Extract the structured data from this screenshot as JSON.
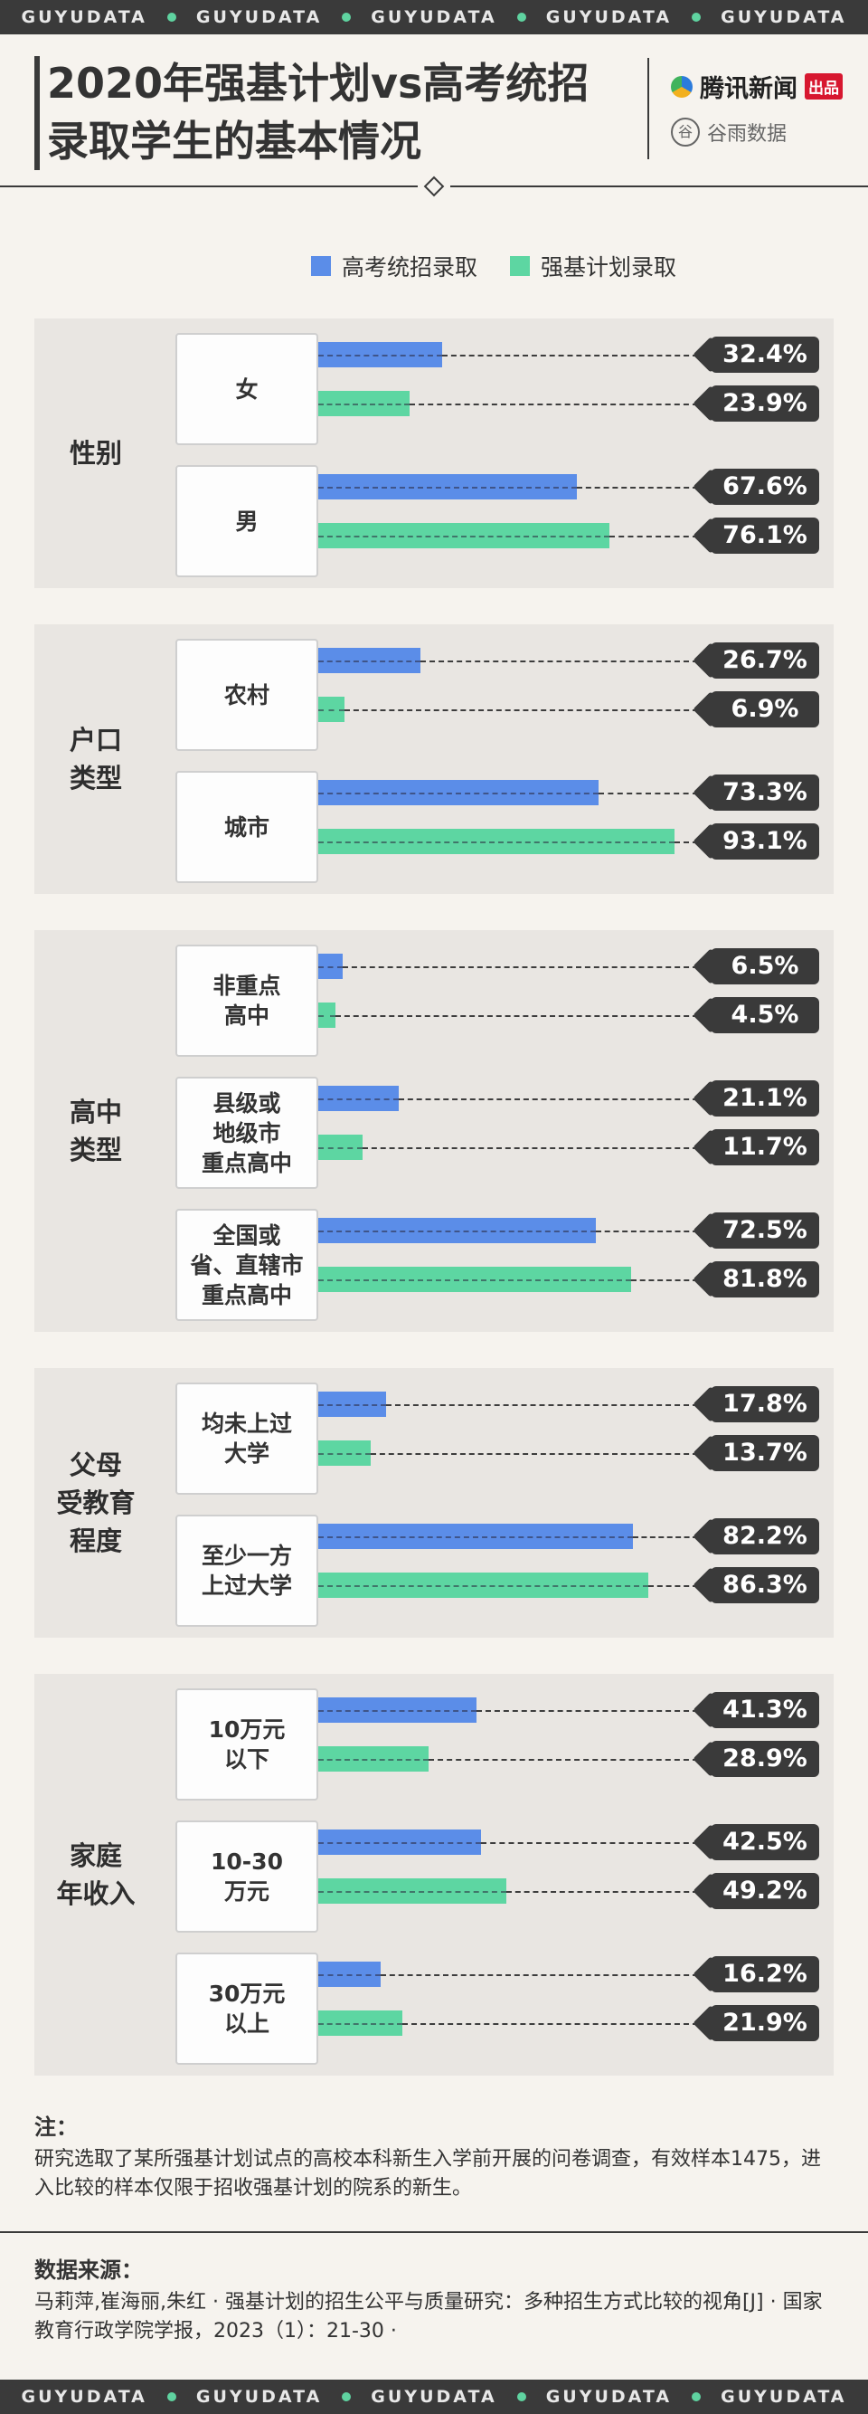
{
  "brand_text": "GUYUDATA",
  "title_line1": "2020年强基计划vs高考统招",
  "title_line2": "录取学生的基本情况",
  "logo_tencent": "腾讯新闻",
  "logo_tencent_badge": "出品",
  "logo_guyu": "谷雨数据",
  "colors": {
    "gaokao": "#5b8de8",
    "qiangji": "#5dd6a2",
    "dark": "#3a3a3a"
  },
  "chart_data": {
    "type": "bar",
    "orientation": "horizontal",
    "unit": "%",
    "series_names": [
      "高考统招录取",
      "强基计划录取"
    ],
    "groups": [
      {
        "label": [
          "性别"
        ],
        "categories": [
          {
            "label": [
              "女"
            ],
            "values": [
              32.4,
              23.9
            ],
            "value_labels": [
              "32.4%",
              "23.9%"
            ]
          },
          {
            "label": [
              "男"
            ],
            "values": [
              67.6,
              76.1
            ],
            "value_labels": [
              "67.6%",
              "76.1%"
            ]
          }
        ]
      },
      {
        "label": [
          "户口",
          "类型"
        ],
        "categories": [
          {
            "label": [
              "农村"
            ],
            "values": [
              26.7,
              6.9
            ],
            "value_labels": [
              "26.7%",
              "6.9%"
            ]
          },
          {
            "label": [
              "城市"
            ],
            "values": [
              73.3,
              93.1
            ],
            "value_labels": [
              "73.3%",
              "93.1%"
            ]
          }
        ]
      },
      {
        "label": [
          "高中",
          "类型"
        ],
        "categories": [
          {
            "label": [
              "非重点",
              "高中"
            ],
            "values": [
              6.5,
              4.5
            ],
            "value_labels": [
              "6.5%",
              "4.5%"
            ]
          },
          {
            "label": [
              "县级或",
              "地级市",
              "重点高中"
            ],
            "values": [
              21.1,
              11.7
            ],
            "value_labels": [
              "21.1%",
              "11.7%"
            ]
          },
          {
            "label": [
              "全国或",
              "省、直辖市",
              "重点高中"
            ],
            "values": [
              72.5,
              81.8
            ],
            "value_labels": [
              "72.5%",
              "81.8%"
            ]
          }
        ]
      },
      {
        "label": [
          "父母",
          "受教育",
          "程度"
        ],
        "categories": [
          {
            "label": [
              "均未上过",
              "大学"
            ],
            "values": [
              17.8,
              13.7
            ],
            "value_labels": [
              "17.8%",
              "13.7%"
            ]
          },
          {
            "label": [
              "至少一方",
              "上过大学"
            ],
            "values": [
              82.2,
              86.3
            ],
            "value_labels": [
              "82.2%",
              "86.3%"
            ]
          }
        ]
      },
      {
        "label": [
          "家庭",
          "年收入"
        ],
        "categories": [
          {
            "label": [
              "10万元",
              "以下"
            ],
            "values": [
              41.3,
              28.9
            ],
            "value_labels": [
              "41.3%",
              "28.9%"
            ]
          },
          {
            "label": [
              "10-30",
              "万元"
            ],
            "values": [
              42.5,
              49.2
            ],
            "value_labels": [
              "42.5%",
              "49.2%"
            ]
          },
          {
            "label": [
              "30万元",
              "以上"
            ],
            "values": [
              16.2,
              21.9
            ],
            "value_labels": [
              "16.2%",
              "21.9%"
            ]
          }
        ]
      }
    ]
  },
  "note_head": "注：",
  "note_text": "研究选取了某所强基计划试点的高校本科新生入学前开展的问卷调查，有效样本1475，进入比较的样本仅限于招收强基计划的院系的新生。",
  "source_head": "数据来源：",
  "source_text": "马莉萍,崔海丽,朱红 · 强基计划的招生公平与质量研究：多种招生方式比较的视角[J] · 国家教育行政学院学报，2023（1）：21-30 ·"
}
